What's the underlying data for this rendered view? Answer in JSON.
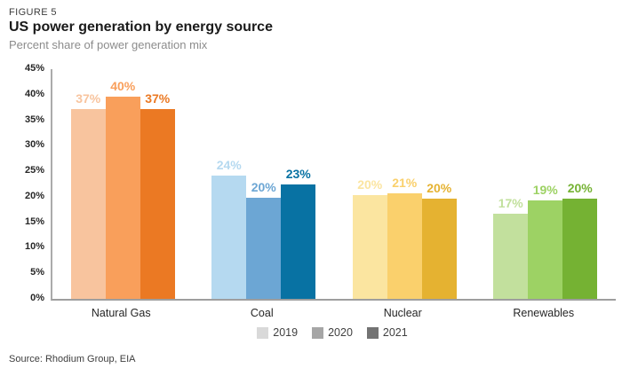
{
  "figure_label": "FIGURE 5",
  "source": "Source: Rhodium Group, EIA",
  "chart_data": {
    "type": "bar",
    "title": "US power generation by energy source",
    "subtitle": "Percent share of power generation mix",
    "categories": [
      "Natural Gas",
      "Coal",
      "Nuclear",
      "Renewables"
    ],
    "series": [
      {
        "name": "2019",
        "values": [
          37,
          24,
          20,
          17
        ],
        "value_labels": [
          "37%",
          "24%",
          "20%",
          "17%"
        ],
        "render_pct": [
          37.2,
          24.1,
          20.4,
          16.6
        ],
        "legend_swatch": "#d9d9d9"
      },
      {
        "name": "2020",
        "values": [
          40,
          20,
          21,
          19
        ],
        "value_labels": [
          "40%",
          "20%",
          "21%",
          "19%"
        ],
        "render_pct": [
          39.6,
          19.8,
          20.6,
          19.3
        ],
        "legend_swatch": "#a6a6a6"
      },
      {
        "name": "2021",
        "values": [
          37,
          23,
          20,
          20
        ],
        "value_labels": [
          "37%",
          "23%",
          "20%",
          "20%"
        ],
        "render_pct": [
          37.2,
          22.5,
          19.6,
          19.6
        ],
        "legend_swatch": "#737373"
      }
    ],
    "bar_colors_by_category": [
      [
        "#f8c49e",
        "#f99f5b",
        "#eb7923"
      ],
      [
        "#b5d9f0",
        "#6ca6d4",
        "#0872a3"
      ],
      [
        "#fbe5a0",
        "#fad06c",
        "#e5b231"
      ],
      [
        "#c2e09d",
        "#9dd264",
        "#75b233"
      ]
    ],
    "axis_color": "#ababab",
    "baseline_color": "#9e9e9e",
    "ylim": [
      0,
      45
    ],
    "ytick_values": [
      0,
      5,
      10,
      15,
      20,
      25,
      30,
      35,
      40,
      45
    ],
    "ytick_labels": [
      "0%",
      "5%",
      "10%",
      "15%",
      "20%",
      "25%",
      "30%",
      "35%",
      "40%",
      "45%"
    ],
    "grid": false,
    "legend_position": "bottom-center"
  }
}
